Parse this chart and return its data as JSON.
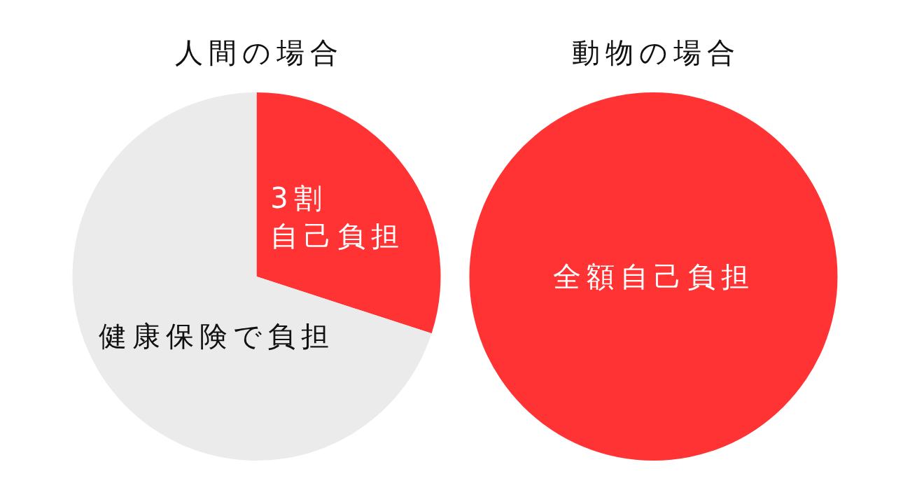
{
  "chart_data": [
    {
      "type": "pie",
      "title": "人間の場合",
      "categories": [
        "3割自己負担",
        "健康保険で負担"
      ],
      "values": [
        30,
        70
      ],
      "colors": [
        "#ff3333",
        "#ebebeb"
      ]
    },
    {
      "type": "pie",
      "title": "動物の場合",
      "categories": [
        "全額自己負担"
      ],
      "values": [
        100
      ],
      "colors": [
        "#ff3333"
      ]
    }
  ]
}
